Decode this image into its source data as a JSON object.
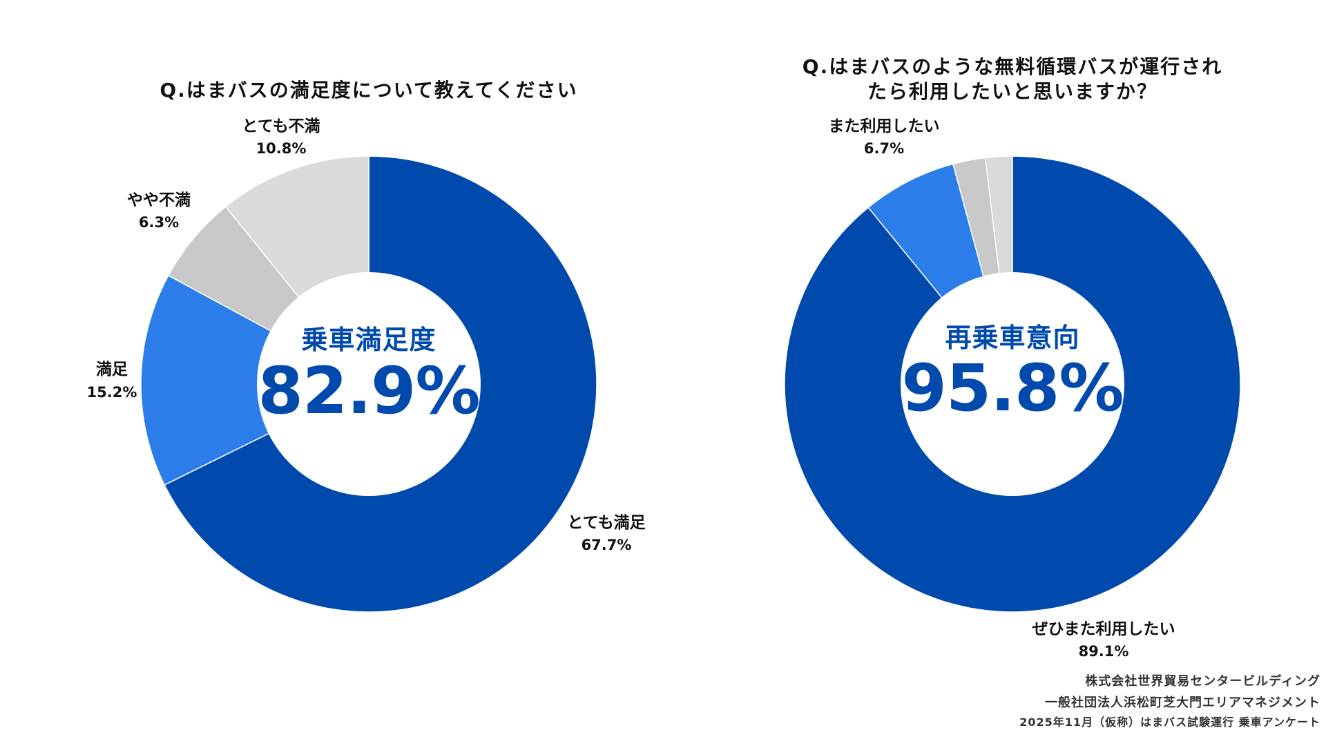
{
  "chart_data": [
    {
      "type": "pie",
      "donut": true,
      "title": "Q.はまバスの満足度について教えてください",
      "center_label": "乗車満足度",
      "center_value": "82.9%",
      "slices": [
        {
          "label": "とても満足",
          "value": 67.7,
          "value_label": "67.7%",
          "color": "#004aad"
        },
        {
          "label": "満足",
          "value": 15.2,
          "value_label": "15.2%",
          "color": "#2b7de9"
        },
        {
          "label": "やや不満",
          "value": 6.3,
          "value_label": "6.3%",
          "color": "#c8c8c8"
        },
        {
          "label": "とても不満",
          "value": 10.8,
          "value_label": "10.8%",
          "color": "#dadada"
        }
      ]
    },
    {
      "type": "pie",
      "donut": true,
      "title": "Q.はまバスのような無料循環バスが運行されたら利用したいと思いますか？",
      "title_lines": [
        "Q.はまバスのような無料循環バスが運行され",
        "たら利用したいと思いますか？"
      ],
      "center_label": "再乗車意向",
      "center_value": "95.8%",
      "slices": [
        {
          "label": "ぜひまた利用したい",
          "value": 89.1,
          "value_label": "89.1%",
          "color": "#004aad"
        },
        {
          "label": "また利用したい",
          "value": 6.7,
          "value_label": "6.7%",
          "color": "#2b7de9"
        },
        {
          "label": "",
          "value": 2.3,
          "value_label": "",
          "color": "#c8c8c8"
        },
        {
          "label": "",
          "value": 1.9,
          "value_label": "",
          "color": "#dadada"
        }
      ]
    }
  ],
  "footer": {
    "line1": "株式会社世界貿易センタービルディング",
    "line2": "一般社団法人浜松町芝大門エリアマネジメント",
    "line3": "2025年11月（仮称）はまバス試験運行 乗車アンケート"
  },
  "colors": {
    "accent": "#004aad",
    "center_text": "#004aad"
  }
}
